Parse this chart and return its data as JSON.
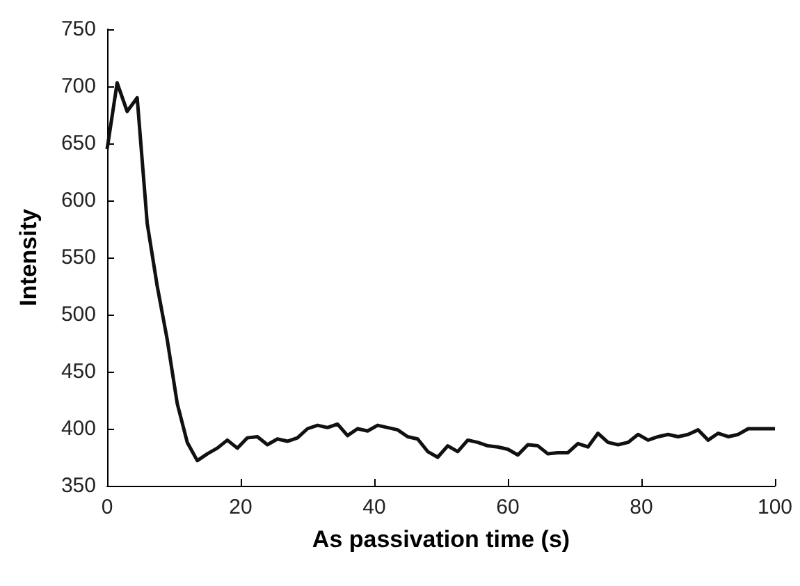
{
  "chart_data": {
    "type": "line",
    "xlabel": "As passivation time (s)",
    "ylabel": "Intensity",
    "xlim": [
      0,
      100
    ],
    "xticks": [
      0,
      20,
      40,
      60,
      80,
      100
    ],
    "ylim": [
      350,
      750
    ],
    "yticks": [
      350,
      400,
      450,
      500,
      550,
      600,
      650,
      700,
      750
    ],
    "grid": false,
    "marker": "none",
    "line_style": "solid",
    "series": [
      {
        "color": "#111111",
        "x": [
          0,
          1.5,
          3,
          4.5,
          6,
          7.5,
          9,
          10.5,
          12,
          13.5,
          15,
          16.5,
          18,
          19.5,
          21,
          22.5,
          24,
          25.5,
          27,
          28.5,
          30,
          31.5,
          33,
          34.5,
          36,
          37.5,
          39,
          40.5,
          42,
          43.5,
          45,
          46.5,
          48,
          49.5,
          51,
          52.5,
          54,
          55.5,
          57,
          58.5,
          60,
          61.5,
          63,
          64.5,
          66,
          67.5,
          69,
          70.5,
          72,
          73.5,
          75,
          76.5,
          78,
          79.5,
          81,
          82.5,
          84,
          85.5,
          87,
          88.5,
          90,
          91.5,
          93,
          94.5,
          96,
          97.5,
          100
        ],
        "values": [
          645,
          703,
          678,
          690,
          580,
          525,
          478,
          422,
          388,
          372,
          378,
          383,
          390,
          383,
          392,
          393,
          386,
          391,
          389,
          392,
          400,
          403,
          401,
          404,
          394,
          400,
          398,
          403,
          401,
          399,
          393,
          391,
          380,
          375,
          385,
          380,
          390,
          388,
          385,
          384,
          382,
          377,
          386,
          385,
          378,
          379,
          379,
          387,
          384,
          396,
          388,
          386,
          388,
          395,
          390,
          393,
          395,
          393,
          395,
          399,
          390,
          396,
          393,
          395,
          400,
          400,
          400
        ]
      }
    ]
  }
}
